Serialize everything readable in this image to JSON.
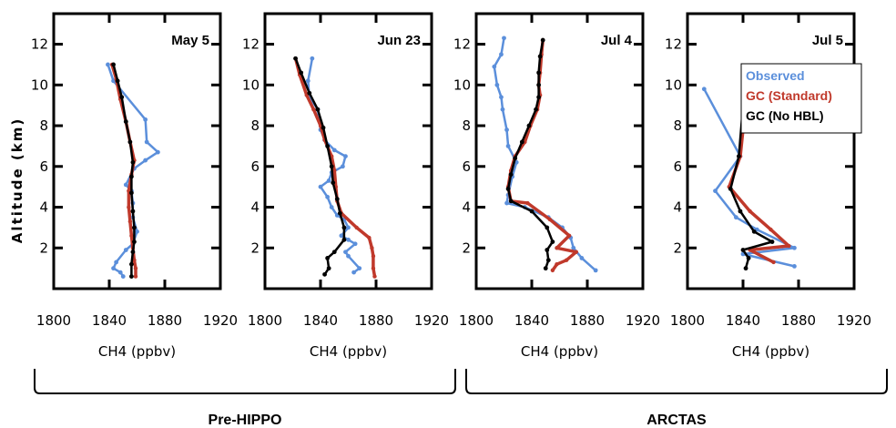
{
  "chart_data": {
    "type": "line",
    "ylabel": "Altitude (km)",
    "xlabel": "CH4 (ppbv)",
    "xlim": [
      1800,
      1920
    ],
    "ylim": [
      0,
      13.5
    ],
    "xticks": [
      1800,
      1840,
      1880,
      1920
    ],
    "yticks": [
      2,
      4,
      6,
      8,
      10,
      12
    ],
    "legend": {
      "placement": "top-right of last panel",
      "entries": [
        {
          "label": "Observed",
          "color": "#5B8FDB"
        },
        {
          "label": "GC (Standard)",
          "color": "#C0392B"
        },
        {
          "label": "GC (No HBL)",
          "color": "#000000"
        }
      ]
    },
    "campaigns": [
      {
        "label": "Pre-HIPPO",
        "panels": [
          0,
          1
        ]
      },
      {
        "label": "ARCTAS",
        "panels": [
          2,
          3
        ]
      }
    ],
    "panels": [
      {
        "title": "May 5",
        "series": [
          {
            "name": "Observed",
            "points": [
              [
                1839,
                11.0
              ],
              [
                1843,
                10.2
              ],
              [
                1866,
                8.3
              ],
              [
                1867,
                7.2
              ],
              [
                1875,
                6.7
              ],
              [
                1866,
                6.3
              ],
              [
                1858,
                5.9
              ],
              [
                1852,
                5.1
              ],
              [
                1856,
                4.8
              ],
              [
                1857,
                4.2
              ],
              [
                1857,
                3.5
              ],
              [
                1860,
                2.8
              ],
              [
                1857,
                2.2
              ],
              [
                1852,
                1.9
              ],
              [
                1845,
                1.3
              ],
              [
                1843,
                1.0
              ],
              [
                1848,
                0.8
              ],
              [
                1850,
                0.6
              ]
            ]
          },
          {
            "name": "GC (Standard)",
            "points": [
              [
                1842,
                11.0
              ],
              [
                1845,
                10.3
              ],
              [
                1848,
                9.3
              ],
              [
                1852,
                8.2
              ],
              [
                1855,
                7.2
              ],
              [
                1858,
                6.3
              ],
              [
                1856,
                5.6
              ],
              [
                1854,
                4.8
              ],
              [
                1854,
                4.0
              ],
              [
                1855,
                3.3
              ],
              [
                1856,
                2.6
              ],
              [
                1857,
                2.0
              ],
              [
                1858,
                1.4
              ],
              [
                1859,
                1.0
              ],
              [
                1859,
                0.6
              ]
            ]
          },
          {
            "name": "GC (No HBL)",
            "points": [
              [
                1843,
                11.0
              ],
              [
                1846,
                10.2
              ],
              [
                1849,
                9.4
              ],
              [
                1852,
                8.2
              ],
              [
                1855,
                7.2
              ],
              [
                1857,
                6.2
              ],
              [
                1856,
                5.5
              ],
              [
                1856,
                4.7
              ],
              [
                1857,
                3.8
              ],
              [
                1858,
                3.0
              ],
              [
                1858,
                2.3
              ],
              [
                1857,
                1.8
              ],
              [
                1856,
                1.2
              ],
              [
                1856,
                0.6
              ]
            ]
          }
        ]
      },
      {
        "title": "Jun 23",
        "series": [
          {
            "name": "Observed",
            "points": [
              [
                1834,
                11.3
              ],
              [
                1831,
                10.2
              ],
              [
                1832,
                9.4
              ],
              [
                1838,
                8.8
              ],
              [
                1840,
                7.8
              ],
              [
                1843,
                7.3
              ],
              [
                1850,
                6.8
              ],
              [
                1858,
                6.5
              ],
              [
                1856,
                6.0
              ],
              [
                1848,
                5.7
              ],
              [
                1846,
                5.3
              ],
              [
                1840,
                5.0
              ],
              [
                1845,
                4.5
              ],
              [
                1848,
                4.0
              ],
              [
                1852,
                3.6
              ],
              [
                1857,
                3.4
              ],
              [
                1860,
                3.0
              ],
              [
                1855,
                2.6
              ],
              [
                1860,
                2.4
              ],
              [
                1865,
                2.2
              ],
              [
                1858,
                1.8
              ],
              [
                1860,
                1.6
              ],
              [
                1868,
                1.0
              ],
              [
                1864,
                0.8
              ]
            ]
          },
          {
            "name": "GC (Standard)",
            "points": [
              [
                1822,
                11.3
              ],
              [
                1825,
                10.5
              ],
              [
                1830,
                9.5
              ],
              [
                1835,
                8.8
              ],
              [
                1840,
                8.0
              ],
              [
                1843,
                7.3
              ],
              [
                1848,
                6.5
              ],
              [
                1850,
                5.8
              ],
              [
                1851,
                5.0
              ],
              [
                1852,
                4.3
              ],
              [
                1855,
                3.7
              ],
              [
                1866,
                3.0
              ],
              [
                1875,
                2.5
              ],
              [
                1877,
                2.0
              ],
              [
                1878,
                1.6
              ],
              [
                1878,
                1.0
              ],
              [
                1879,
                0.6
              ]
            ]
          },
          {
            "name": "GC (No HBL)",
            "points": [
              [
                1822,
                11.3
              ],
              [
                1826,
                10.6
              ],
              [
                1832,
                9.6
              ],
              [
                1838,
                8.8
              ],
              [
                1842,
                7.9
              ],
              [
                1845,
                7.0
              ],
              [
                1848,
                6.0
              ],
              [
                1849,
                5.2
              ],
              [
                1852,
                4.4
              ],
              [
                1854,
                3.7
              ],
              [
                1857,
                3.0
              ],
              [
                1857,
                2.4
              ],
              [
                1850,
                1.8
              ],
              [
                1845,
                1.5
              ],
              [
                1846,
                1.0
              ],
              [
                1843,
                0.7
              ]
            ]
          }
        ]
      },
      {
        "title": "Jul 4",
        "series": [
          {
            "name": "Observed",
            "points": [
              [
                1820,
                12.3
              ],
              [
                1818,
                11.5
              ],
              [
                1813,
                10.9
              ],
              [
                1815,
                10.0
              ],
              [
                1818,
                9.4
              ],
              [
                1819,
                8.8
              ],
              [
                1822,
                7.8
              ],
              [
                1823,
                7.0
              ],
              [
                1829,
                6.2
              ],
              [
                1826,
                5.5
              ],
              [
                1823,
                4.6
              ],
              [
                1822,
                4.2
              ],
              [
                1835,
                4.0
              ],
              [
                1852,
                3.5
              ],
              [
                1862,
                3.0
              ],
              [
                1868,
                2.5
              ],
              [
                1870,
                2.0
              ],
              [
                1876,
                1.5
              ],
              [
                1886,
                0.9
              ]
            ]
          },
          {
            "name": "GC (Standard)",
            "points": [
              [
                1848,
                12.2
              ],
              [
                1847,
                11.5
              ],
              [
                1846,
                10.6
              ],
              [
                1845,
                10.0
              ],
              [
                1846,
                9.5
              ],
              [
                1844,
                8.8
              ],
              [
                1839,
                8.0
              ],
              [
                1835,
                7.2
              ],
              [
                1828,
                6.5
              ],
              [
                1825,
                5.8
              ],
              [
                1823,
                5.0
              ],
              [
                1825,
                4.3
              ],
              [
                1837,
                4.2
              ],
              [
                1853,
                3.4
              ],
              [
                1867,
                2.6
              ],
              [
                1858,
                2.0
              ],
              [
                1872,
                1.8
              ],
              [
                1865,
                1.4
              ],
              [
                1858,
                1.2
              ],
              [
                1855,
                0.9
              ]
            ]
          },
          {
            "name": "GC (No HBL)",
            "points": [
              [
                1848,
                12.2
              ],
              [
                1846,
                11.4
              ],
              [
                1845,
                10.6
              ],
              [
                1845,
                10.0
              ],
              [
                1845,
                9.4
              ],
              [
                1843,
                8.8
              ],
              [
                1838,
                8.0
              ],
              [
                1833,
                7.2
              ],
              [
                1828,
                6.4
              ],
              [
                1825,
                5.6
              ],
              [
                1823,
                4.9
              ],
              [
                1825,
                4.3
              ],
              [
                1840,
                3.8
              ],
              [
                1851,
                3.0
              ],
              [
                1855,
                2.3
              ],
              [
                1851,
                1.9
              ],
              [
                1852,
                1.4
              ],
              [
                1850,
                1.0
              ]
            ]
          }
        ]
      },
      {
        "title": "Jul 5",
        "series": [
          {
            "name": "Observed",
            "points": [
              [
                1812,
                9.8
              ],
              [
                1838,
                6.5
              ],
              [
                1820,
                4.8
              ],
              [
                1835,
                3.5
              ],
              [
                1850,
                2.9
              ],
              [
                1877,
                2.0
              ],
              [
                1840,
                1.7
              ],
              [
                1877,
                1.1
              ]
            ]
          },
          {
            "name": "GC (Standard)",
            "points": [
              [
                1843,
                9.8
              ],
              [
                1838,
                6.5
              ],
              [
                1830,
                5.0
              ],
              [
                1845,
                3.8
              ],
              [
                1860,
                2.9
              ],
              [
                1873,
                2.1
              ],
              [
                1845,
                1.9
              ],
              [
                1862,
                1.3
              ]
            ]
          },
          {
            "name": "GC (No HBL)",
            "points": [
              [
                1841,
                9.8
              ],
              [
                1837,
                6.5
              ],
              [
                1831,
                4.9
              ],
              [
                1838,
                3.8
              ],
              [
                1848,
                2.8
              ],
              [
                1861,
                2.3
              ],
              [
                1840,
                1.9
              ],
              [
                1844,
                1.5
              ],
              [
                1842,
                1.0
              ]
            ]
          }
        ]
      }
    ]
  }
}
